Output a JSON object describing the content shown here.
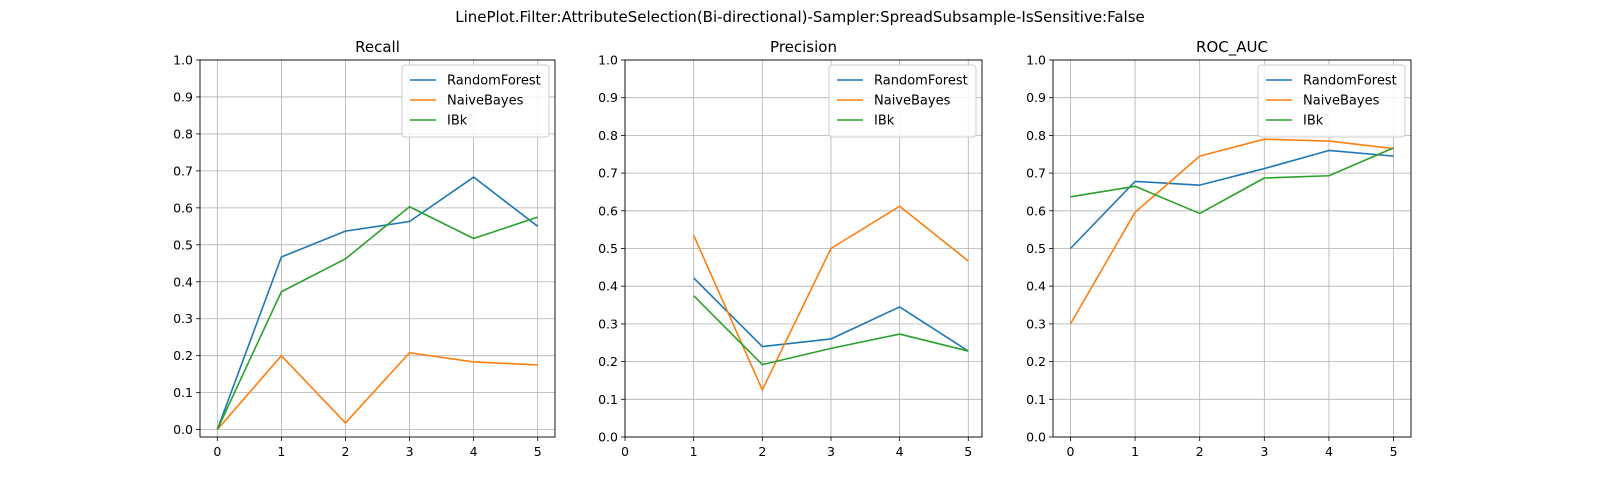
{
  "figure": {
    "title": "LinePlot.Filter:AttributeSelection(Bi-directional)-Sampler:SpreadSubsample-IsSensitive:False"
  },
  "colors": {
    "RandomForest": "#1f77b4",
    "NaiveBayes": "#ff7f0e",
    "IBk": "#2ca02c",
    "grid": "#b0b0b0"
  },
  "chart_data": [
    {
      "type": "line",
      "title": "Recall",
      "xlim": [
        -0.27,
        5.27
      ],
      "ylim": [
        -0.02,
        1.0
      ],
      "xticks": [
        0,
        1,
        2,
        3,
        4,
        5
      ],
      "yticks": [
        0.0,
        0.1,
        0.2,
        0.3,
        0.4,
        0.5,
        0.6,
        0.7,
        0.8,
        0.9,
        1.0
      ],
      "grid": true,
      "legend": "top-right",
      "series": [
        {
          "name": "RandomForest",
          "x": [
            0,
            1,
            2,
            3,
            4,
            5
          ],
          "values": [
            0.0,
            0.467,
            0.537,
            0.563,
            0.683,
            0.55
          ]
        },
        {
          "name": "NaiveBayes",
          "x": [
            0,
            1,
            2,
            3,
            4,
            5
          ],
          "values": [
            0.0,
            0.2,
            0.018,
            0.208,
            0.183,
            0.175
          ]
        },
        {
          "name": "IBk",
          "x": [
            0,
            1,
            2,
            3,
            4,
            5
          ],
          "values": [
            0.0,
            0.373,
            0.462,
            0.603,
            0.517,
            0.575
          ]
        }
      ]
    },
    {
      "type": "line",
      "title": "Precision",
      "xlim": [
        0,
        5.2
      ],
      "ylim": [
        0.0,
        1.0
      ],
      "xticks": [
        0,
        1,
        2,
        3,
        4,
        5
      ],
      "yticks": [
        0.0,
        0.1,
        0.2,
        0.3,
        0.4,
        0.5,
        0.6,
        0.7,
        0.8,
        0.9,
        1.0
      ],
      "grid": true,
      "legend": "top-right",
      "series": [
        {
          "name": "RandomForest",
          "x": [
            1,
            2,
            3,
            4,
            5
          ],
          "values": [
            0.422,
            0.24,
            0.26,
            0.345,
            0.228
          ]
        },
        {
          "name": "NaiveBayes",
          "x": [
            1,
            2,
            3,
            4,
            5
          ],
          "values": [
            0.535,
            0.125,
            0.5,
            0.612,
            0.467
          ]
        },
        {
          "name": "IBk",
          "x": [
            1,
            2,
            3,
            4,
            5
          ],
          "values": [
            0.375,
            0.192,
            0.235,
            0.273,
            0.228
          ]
        }
      ]
    },
    {
      "type": "line",
      "title": "ROC_AUC",
      "xlim": [
        -0.27,
        5.27
      ],
      "ylim": [
        0.0,
        1.0
      ],
      "xticks": [
        0,
        1,
        2,
        3,
        4,
        5
      ],
      "yticks": [
        0.0,
        0.1,
        0.2,
        0.3,
        0.4,
        0.5,
        0.6,
        0.7,
        0.8,
        0.9,
        1.0
      ],
      "grid": true,
      "legend": "top-right",
      "series": [
        {
          "name": "RandomForest",
          "x": [
            0,
            1,
            2,
            3,
            4,
            5
          ],
          "values": [
            0.5,
            0.678,
            0.668,
            0.712,
            0.76,
            0.745
          ]
        },
        {
          "name": "NaiveBayes",
          "x": [
            0,
            1,
            2,
            3,
            4,
            5
          ],
          "values": [
            0.3,
            0.596,
            0.745,
            0.79,
            0.785,
            0.765
          ]
        },
        {
          "name": "IBk",
          "x": [
            0,
            1,
            2,
            3,
            4,
            5
          ],
          "values": [
            0.637,
            0.665,
            0.593,
            0.687,
            0.693,
            0.767
          ]
        }
      ]
    }
  ]
}
